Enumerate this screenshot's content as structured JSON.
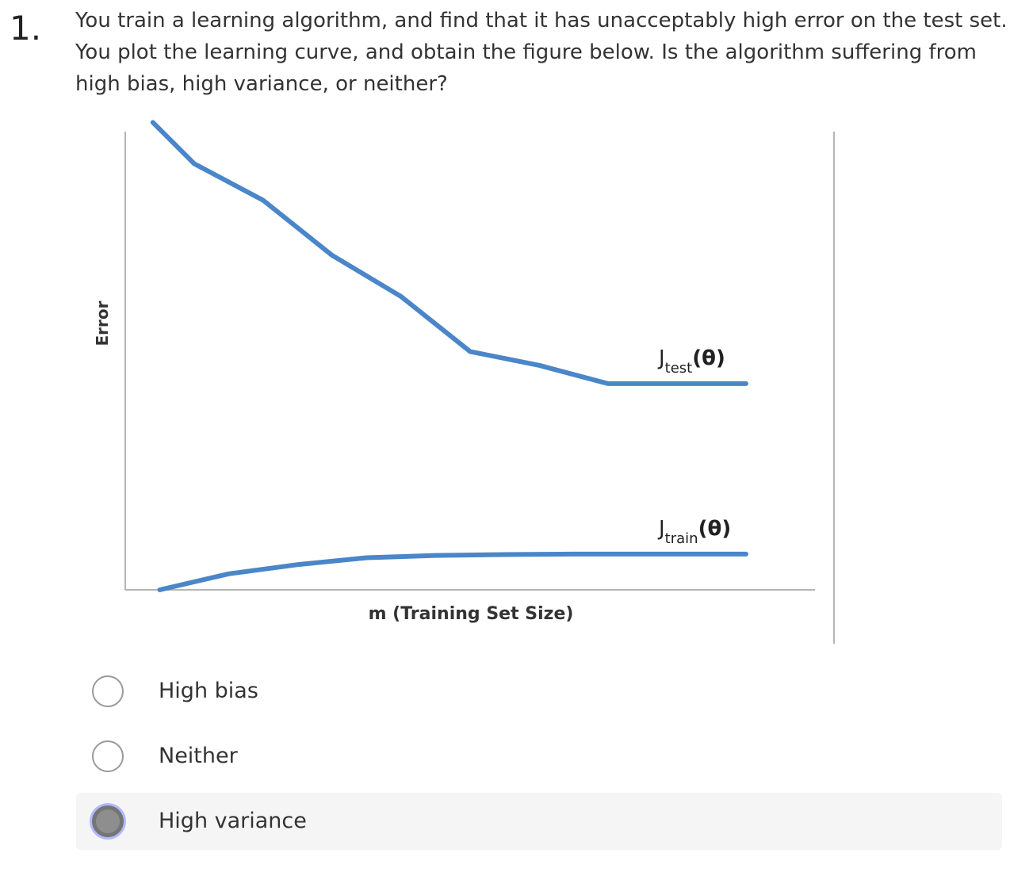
{
  "question": {
    "number": "1.",
    "text": "You train a learning algorithm, and find that it has unacceptably high error on the test set. You plot the learning curve, and obtain the figure below. Is the algorithm suffering from high bias, high variance, or neither?"
  },
  "chart_data": {
    "type": "line",
    "title": "",
    "xlabel": "m (Training Set Size)",
    "ylabel": "Error",
    "grid": false,
    "series": [
      {
        "name": "J_test(θ)",
        "label_main": "J",
        "label_sub": "test",
        "label_arg": "(θ)",
        "color": "#4a86c8",
        "x": [
          0.4,
          1,
          2,
          3,
          4,
          5,
          6,
          7,
          8,
          9
        ],
        "y": [
          10.2,
          9.3,
          8.5,
          7.3,
          6.4,
          5.2,
          4.9,
          4.5,
          4.5,
          4.5
        ]
      },
      {
        "name": "J_train(θ)",
        "label_main": "J",
        "label_sub": "train",
        "label_arg": "(θ)",
        "color": "#4a86c8",
        "x": [
          0.5,
          1.5,
          2.5,
          3.5,
          4.5,
          5.5,
          6.5,
          9
        ],
        "y": [
          0,
          0.35,
          0.55,
          0.7,
          0.75,
          0.77,
          0.78,
          0.78
        ]
      }
    ],
    "xlim": [
      0,
      10
    ],
    "ylim": [
      0,
      10
    ]
  },
  "options": [
    {
      "label": "High bias",
      "selected": false
    },
    {
      "label": "Neither",
      "selected": false
    },
    {
      "label": "High variance",
      "selected": true
    }
  ]
}
